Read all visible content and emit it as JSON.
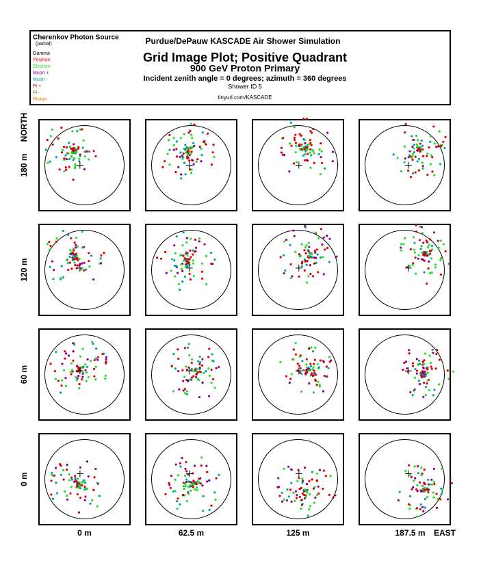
{
  "header": {
    "source_title": "Cherenkov Photon Source",
    "source_note": "(partial)",
    "legend": [
      {
        "label": "Gamma",
        "color": "#000000"
      },
      {
        "label": "Positron",
        "color": "#e00000"
      },
      {
        "label": "Electron",
        "color": "#22dd22"
      },
      {
        "label": "Muon +",
        "color": "#8a008a"
      },
      {
        "label": "Muon -",
        "color": "#00a0a0"
      },
      {
        "label": "Pi +",
        "color": "#8b1a1a"
      },
      {
        "label": "Pi -",
        "color": "#6b8e23"
      },
      {
        "label": "Proton",
        "color": "#e07000"
      }
    ],
    "org": "Purdue/DePauw KASCADE Air Shower Simulation",
    "title": "Grid Image Plot; Positive Quadrant",
    "subtitle": "900 GeV Proton Primary",
    "angles": "Incident zenith angle =  0 degrees;  azimuth =  360 degrees",
    "shower_id": "Shower ID 5",
    "url": "tinyurl.com/KASCADE"
  },
  "grid": {
    "north": "NORTH",
    "east": "EAST",
    "row_labels": [
      "180 m",
      "120 m",
      "60 m",
      "0 m"
    ],
    "column_labels": [
      "0 m",
      "62.5 m",
      "125 m",
      "187.5 m"
    ]
  }
}
